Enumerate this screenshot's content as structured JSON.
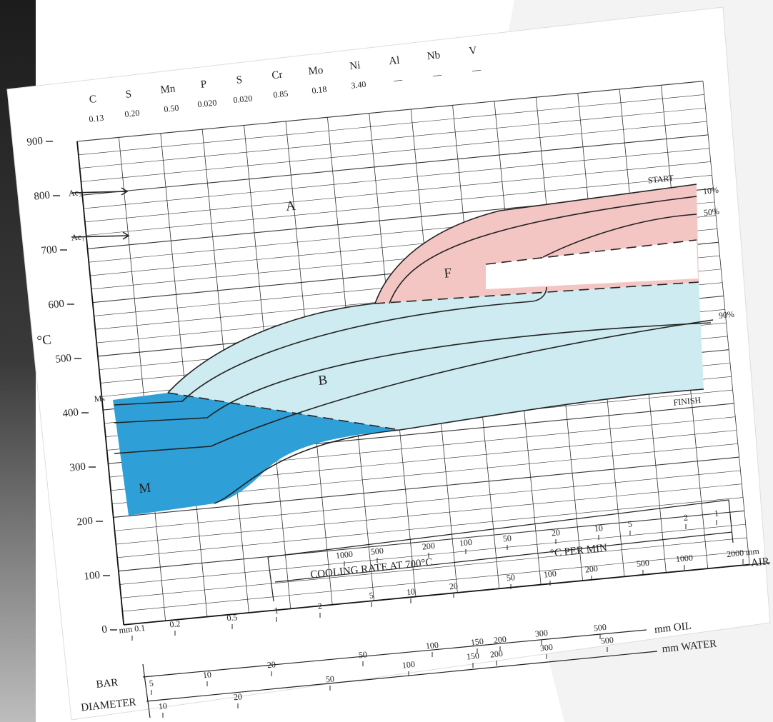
{
  "composition": {
    "elements": [
      "C",
      "S",
      "Mn",
      "P",
      "S",
      "Cr",
      "Mo",
      "Ni",
      "Al",
      "Nb",
      "V"
    ],
    "amounts": [
      "0.13",
      "0.20",
      "0.50",
      "0.020",
      "0.020",
      "0.85",
      "0.18",
      "3.40",
      "—",
      "—",
      "—"
    ]
  },
  "temperature_axis": {
    "label": "°C",
    "ticks": [
      0,
      100,
      200,
      300,
      400,
      500,
      600,
      700,
      800,
      900
    ]
  },
  "markers": {
    "ac3": "Ac₃",
    "ac1": "Ac₁",
    "ms": "Mₛ"
  },
  "regions": {
    "austenite": "A",
    "ferrite": "F",
    "bainite": "B",
    "martensite": "M"
  },
  "curve_labels": {
    "start": "START",
    "p10": "10%",
    "p50": "50%",
    "p90": "90%",
    "finish": "FINISH"
  },
  "cooling_rate": {
    "title": "COOLING RATE AT 700°C",
    "unit": "°C PER MIN",
    "ticks": [
      "1000",
      "500",
      "200",
      "100",
      "50",
      "20",
      "10",
      "5",
      "2",
      "1"
    ]
  },
  "air": {
    "ticks": [
      "mm 0.1",
      "0.2",
      "0.5",
      "1",
      "2",
      "5",
      "10",
      "20",
      "50",
      "100",
      "200",
      "500",
      "1000",
      "2000 mm"
    ],
    "label": "AIR"
  },
  "oil": {
    "ticks": [
      "5",
      "10",
      "20",
      "50",
      "100",
      "150",
      "200",
      "300",
      "500"
    ],
    "label": "mm OIL"
  },
  "water": {
    "ticks": [
      "10",
      "20",
      "50",
      "100",
      "150",
      "200",
      "300",
      "500"
    ],
    "label": "mm WATER"
  },
  "bar_diameter": [
    "BAR",
    "DIAMETER"
  ]
}
